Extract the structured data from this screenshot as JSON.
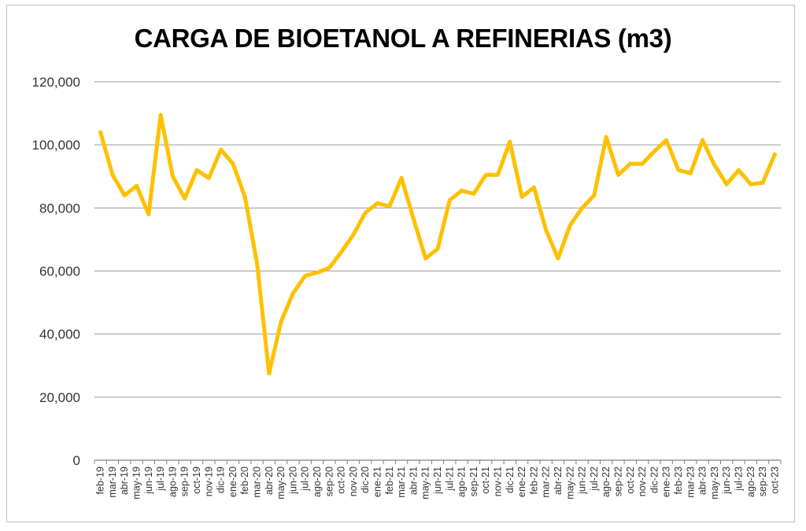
{
  "chart_data": {
    "type": "line",
    "title": "CARGA DE BIOETANOL A REFINERIAS (m3)",
    "xlabel": "",
    "ylabel": "",
    "ylim": [
      0,
      120000
    ],
    "yticks": [
      0,
      20000,
      40000,
      60000,
      80000,
      100000,
      120000
    ],
    "ytick_labels": [
      "0",
      "20,000",
      "40,000",
      "60,000",
      "80,000",
      "100,000",
      "120,000"
    ],
    "grid": true,
    "legend": "none",
    "line_color": "#FFC000",
    "categories": [
      "feb-19",
      "mar-19",
      "abr-19",
      "may-19",
      "jun-19",
      "jul-19",
      "ago-19",
      "sep-19",
      "oct-19",
      "nov-19",
      "dic-19",
      "ene-20",
      "feb-20",
      "mar-20",
      "abr-20",
      "may-20",
      "jun-20",
      "jul-20",
      "ago-20",
      "sep-20",
      "oct-20",
      "nov-20",
      "dic-20",
      "ene-21",
      "feb-21",
      "mar-21",
      "abr-21",
      "may-21",
      "jun-21",
      "jul-21",
      "ago-21",
      "sep-21",
      "oct-21",
      "nov-21",
      "dic-21",
      "ene-22",
      "feb-22",
      "mar-22",
      "abr-22",
      "may-22",
      "jun-22",
      "jul-22",
      "ago-22",
      "sep-22",
      "oct-22",
      "nov-22",
      "dic-22",
      "ene-23",
      "feb-23",
      "mar-23",
      "abr-23",
      "may-23",
      "jun-23",
      "jul-23",
      "ago-23",
      "sep-23",
      "oct-23"
    ],
    "series": [
      {
        "values": [
          104000,
          90500,
          84000,
          87000,
          78000,
          109500,
          90000,
          83000,
          92000,
          89500,
          98500,
          94000,
          83500,
          62500,
          27500,
          44000,
          53000,
          58500,
          59500,
          61000,
          66000,
          71500,
          78500,
          81500,
          80500,
          89500,
          76500,
          64000,
          67000,
          82500,
          85500,
          84500,
          90500,
          90500,
          101000,
          83500,
          86500,
          73000,
          64000,
          74500,
          80000,
          84000,
          102500,
          90500,
          94000,
          94000,
          98000,
          101500,
          92000,
          91000,
          101500,
          93500,
          87500,
          92000,
          87500,
          88000,
          97000
        ]
      }
    ]
  }
}
